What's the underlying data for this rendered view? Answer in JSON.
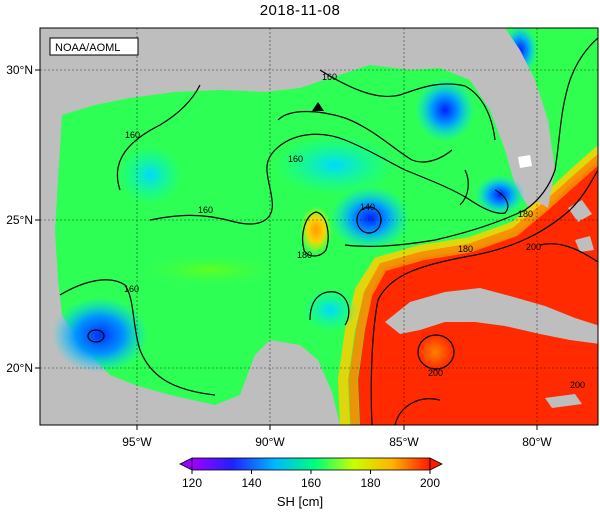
{
  "title": "2018-11-08",
  "credit": "NOAA/AOML",
  "axes": {
    "lon_ticks": [
      -95,
      -90,
      -85,
      -80
    ],
    "lon_labels": [
      "95°W",
      "90°W",
      "85°W",
      "80°W"
    ],
    "lat_ticks": [
      20,
      25,
      30
    ],
    "lat_labels": [
      "20°N",
      "25°N",
      "30°N"
    ],
    "lon_range": [
      -98,
      -78
    ],
    "lat_range": [
      18,
      31
    ]
  },
  "contour_labels": [
    "160",
    "160",
    "160",
    "160",
    "160",
    "140",
    "180",
    "180",
    "180",
    "200",
    "200",
    "200"
  ],
  "colorbar": {
    "title": "SH [cm]",
    "min": 120,
    "max": 200,
    "tick_values": [
      120,
      140,
      160,
      180,
      200
    ],
    "tick_labels": [
      "120",
      "140",
      "160",
      "180",
      "200"
    ],
    "colors": [
      "#a000ff",
      "#1c1cff",
      "#00b8ff",
      "#00ff7a",
      "#c8ff00",
      "#ffb400",
      "#ff1a00"
    ]
  },
  "marker": {
    "symbol": "triangle",
    "lon": -88.3,
    "lat": 28.6
  },
  "colors": {
    "land": "#bebebe",
    "gulf_base": "#2dff55",
    "loop_current": "#ff2a00",
    "cyclone": "#1a55ff",
    "eddy": "#ffa500"
  }
}
